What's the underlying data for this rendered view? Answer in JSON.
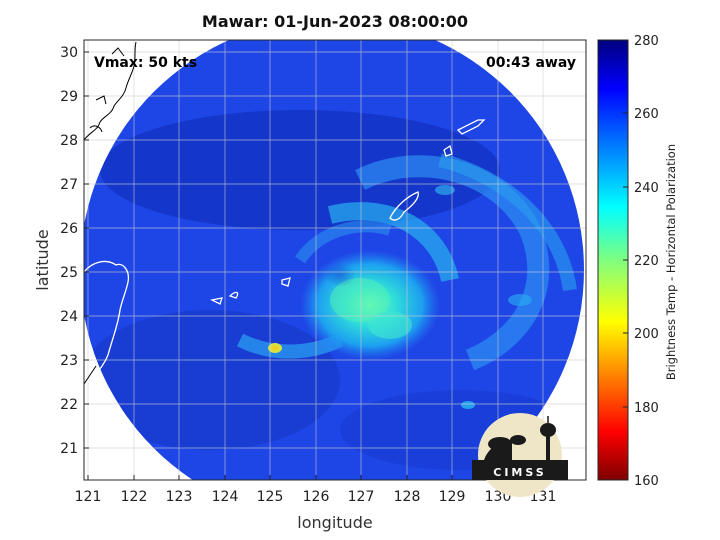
{
  "title": "Mawar: 01-Jun-2023 08:00:00",
  "vmax_label": "Vmax: 50 kts",
  "time_label": "00:43 away",
  "xlabel": "longitude",
  "ylabel": "latitude",
  "x_ticks": [
    "121",
    "122",
    "123",
    "124",
    "125",
    "126",
    "127",
    "128",
    "129",
    "130",
    "131"
  ],
  "y_ticks": [
    "21",
    "22",
    "23",
    "24",
    "25",
    "26",
    "27",
    "28",
    "29",
    "30"
  ],
  "colorbar": {
    "label": "Brightness Temp - Horizontal Polarization",
    "ticks": [
      "280",
      "260",
      "240",
      "220",
      "200",
      "180",
      "160"
    ],
    "range": [
      160,
      280
    ],
    "colormap": "jet"
  },
  "logo_text": "CIMSS",
  "colors": {
    "background_blue": "#1a3fe0",
    "deep_blue": "#1030b8",
    "core_cyan": "#3fe6d4",
    "hot_spot": "#e8e020"
  }
}
